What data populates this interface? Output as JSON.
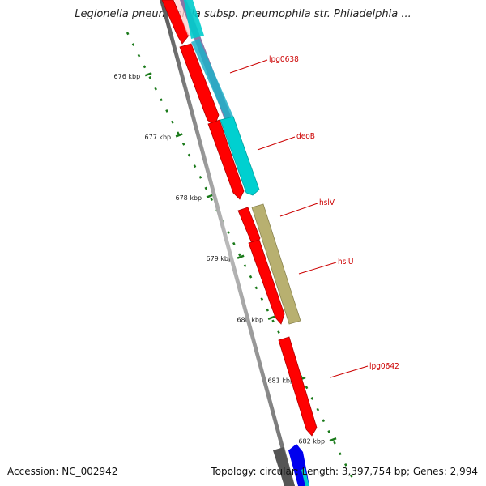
{
  "title": "Legionella pneumophila subsp. pneumophila str. Philadelphia ...",
  "footer": {
    "accession": "Accession: NC_002942",
    "summary": "Topology: circular; Length: 3,397,754 bp; Genes: 2,994"
  },
  "colors": {
    "backbone": "#8a8a8a",
    "tick": "#1a7a1a",
    "red_gene": "#ff0000",
    "cyan_gene": "#00cccc",
    "olive_gene": "#b8b070",
    "purple_band": "#7a6aa0",
    "label": "#cc0000"
  },
  "ruler": {
    "ticks": [
      {
        "label": "676 kbp",
        "value": 676
      },
      {
        "label": "677 kbp",
        "value": 677
      },
      {
        "label": "678 kbp",
        "value": 678
      },
      {
        "label": "679 kbp",
        "value": 679
      },
      {
        "label": "680 kbp",
        "value": 680
      },
      {
        "label": "681 kbp",
        "value": 681
      },
      {
        "label": "682 kbp",
        "value": 682
      }
    ]
  },
  "genes": [
    {
      "name": "lpg0638"
    },
    {
      "name": "deoB"
    },
    {
      "name": "hslV"
    },
    {
      "name": "hslU"
    },
    {
      "name": "lpg0642"
    }
  ]
}
